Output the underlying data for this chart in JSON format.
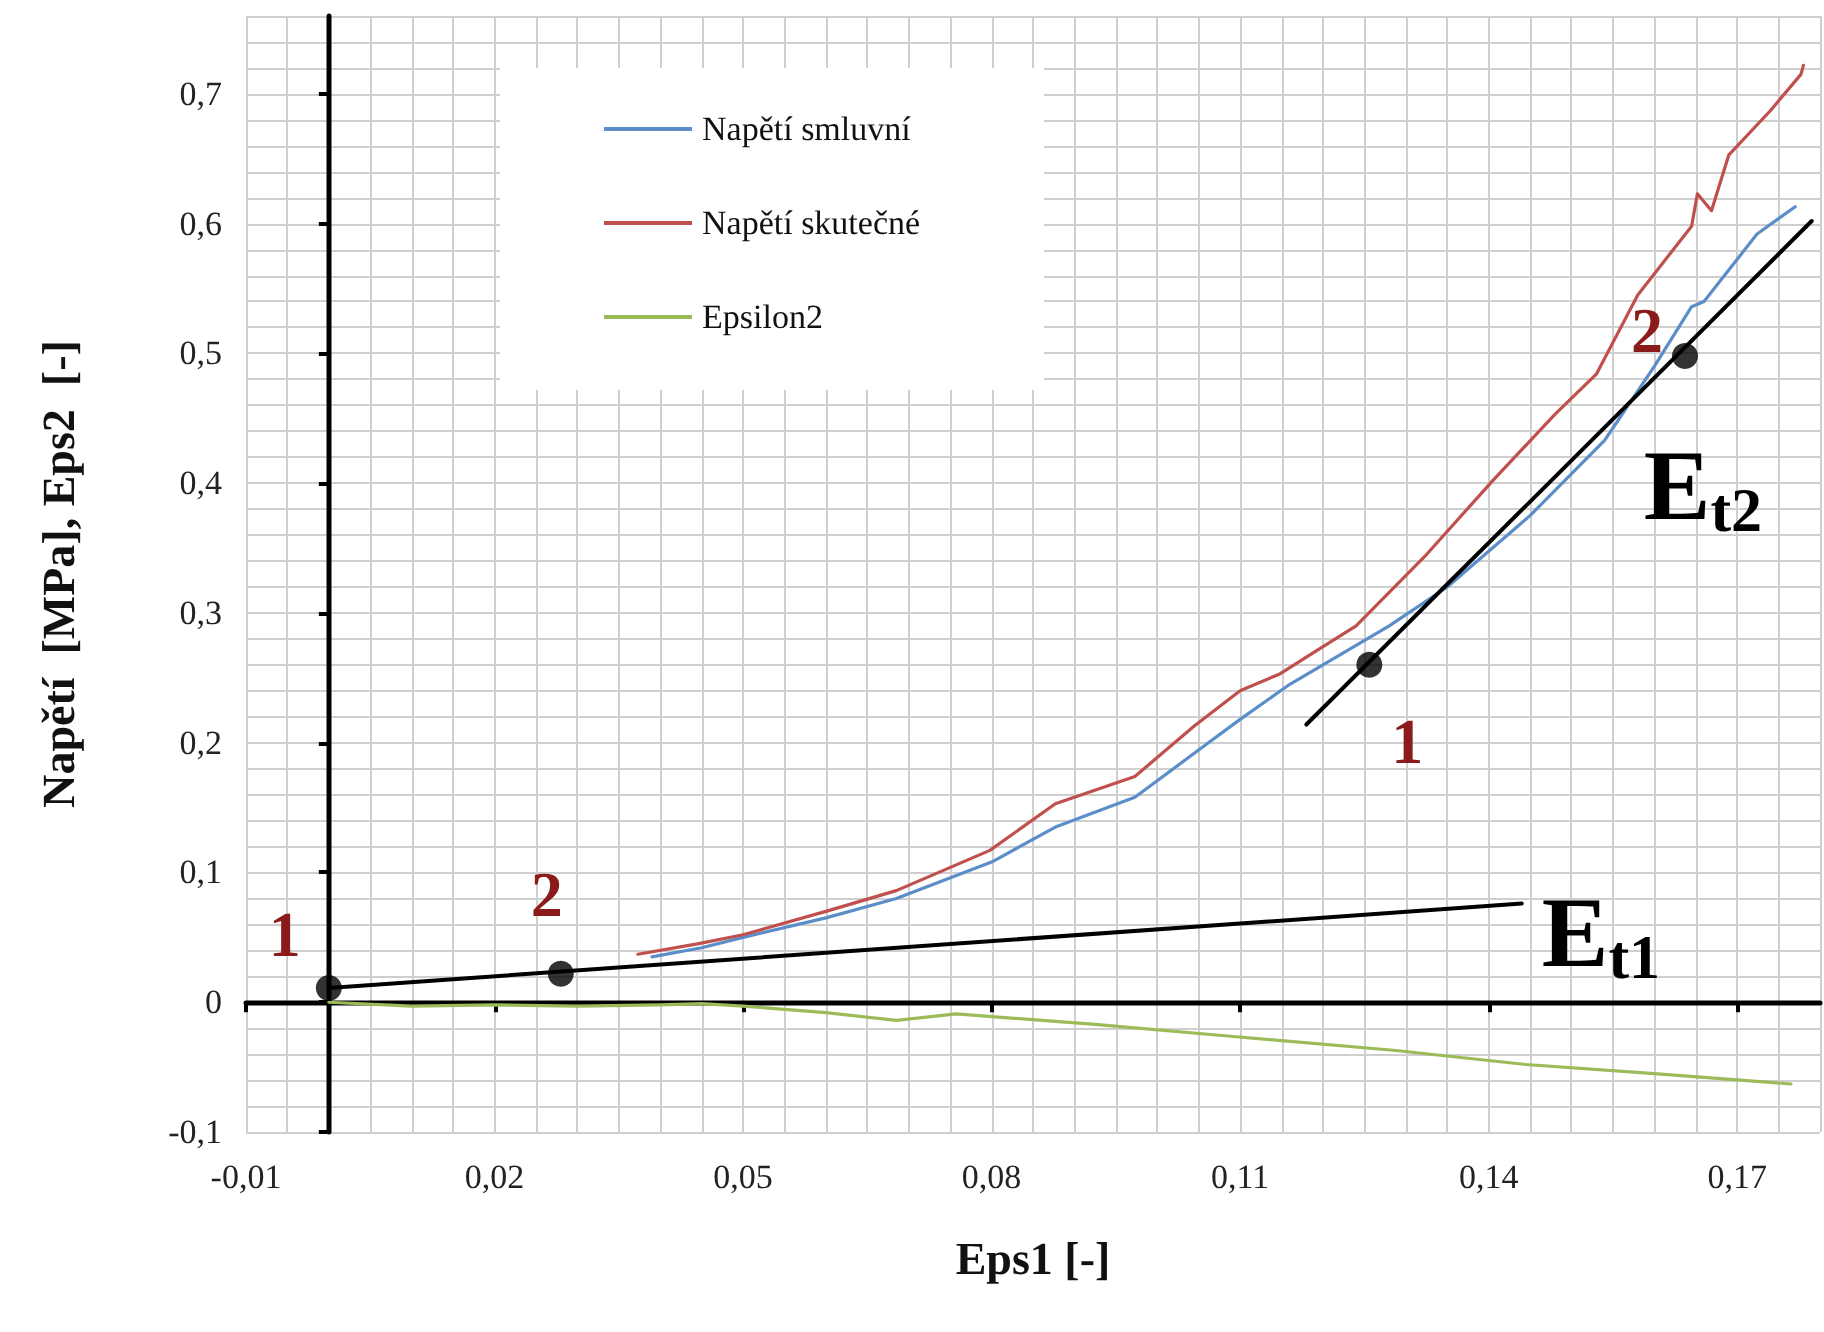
{
  "chart_data": {
    "type": "line",
    "xlabel": "Eps1 [-]",
    "ylabel": "Napětí  [MPa], Eps2  [-]",
    "xlim": [
      -0.01,
      0.18
    ],
    "ylim": [
      -0.1,
      0.76
    ],
    "xticks": [
      {
        "value": -0.01,
        "label": "-0,01"
      },
      {
        "value": 0.02,
        "label": "0,02"
      },
      {
        "value": 0.05,
        "label": "0,05"
      },
      {
        "value": 0.08,
        "label": "0,08"
      },
      {
        "value": 0.11,
        "label": "0,11"
      },
      {
        "value": 0.14,
        "label": "0,14"
      },
      {
        "value": 0.17,
        "label": "0,17"
      }
    ],
    "yticks": [
      {
        "value": -0.1,
        "label": "-0,1"
      },
      0,
      {
        "value": 0.1,
        "label": "0,1"
      },
      {
        "value": 0.2,
        "label": "0,2"
      },
      {
        "value": 0.3,
        "label": "0,3"
      },
      {
        "value": 0.4,
        "label": "0,4"
      },
      {
        "value": 0.5,
        "label": "0,5"
      },
      {
        "value": 0.6,
        "label": "0,6"
      },
      {
        "value": 0.7,
        "label": "0,7"
      }
    ],
    "grid": true,
    "legend": "top left",
    "marker": "none",
    "line_style": "solid",
    "series": [
      {
        "name": "Napětí smluvní",
        "color": "#5b8ec9",
        "x": [
          0.039,
          0.045,
          0.05,
          0.06,
          0.0685,
          0.08,
          0.0877,
          0.0973,
          0.1045,
          0.11,
          0.116,
          0.12,
          0.128,
          0.135,
          0.145,
          0.154,
          0.16,
          0.1645,
          0.166,
          0.1724,
          0.177
        ],
        "values": [
          0.035,
          0.042,
          0.05,
          0.065,
          0.08,
          0.108,
          0.135,
          0.158,
          0.192,
          0.218,
          0.245,
          0.26,
          0.29,
          0.32,
          0.375,
          0.433,
          0.49,
          0.536,
          0.54,
          0.592,
          0.613
        ]
      },
      {
        "name": "Napětí skutečné",
        "color": "#c0504d",
        "x": [
          0.0373,
          0.0445,
          0.05,
          0.06,
          0.0685,
          0.0798,
          0.0877,
          0.0973,
          0.1045,
          0.11,
          0.1148,
          0.119,
          0.124,
          0.1325,
          0.1405,
          0.148,
          0.153,
          0.158,
          0.1645,
          0.1652,
          0.1669,
          0.169,
          0.174,
          0.1777,
          0.178
        ],
        "values": [
          0.037,
          0.045,
          0.052,
          0.07,
          0.086,
          0.117,
          0.153,
          0.174,
          0.213,
          0.24,
          0.253,
          0.27,
          0.29,
          0.345,
          0.402,
          0.453,
          0.484,
          0.545,
          0.598,
          0.623,
          0.61,
          0.653,
          0.687,
          0.715,
          0.722
        ]
      },
      {
        "name": "Epsilon2",
        "color": "#9bbb59",
        "x": [
          0,
          0.01,
          0.02,
          0.03,
          0.04,
          0.045,
          0.05,
          0.06,
          0.0685,
          0.0757,
          0.0925,
          0.1085,
          0.1285,
          0.1445,
          0.16,
          0.1765
        ],
        "values": [
          0,
          -0.003,
          -0.002,
          -0.003,
          -0.002,
          -0.001,
          -0.003,
          -0.008,
          -0.014,
          -0.009,
          -0.017,
          -0.026,
          -0.037,
          -0.048,
          -0.055,
          -0.063
        ]
      },
      {
        "color": "#000000",
        "x": [
          0,
          0.144
        ],
        "values": [
          0.011,
          0.076
        ]
      },
      {
        "color": "#000000",
        "x": [
          0.118,
          0.179
        ],
        "values": [
          0.214,
          0.602
        ]
      },
      {
        "type": "scatter",
        "marker": "circle",
        "color": "#000000",
        "x": [
          0,
          0.028,
          0.1256,
          0.1637
        ],
        "values": [
          0.011,
          0.022,
          0.26,
          0.498
        ]
      }
    ],
    "annotations": [
      {
        "text": "1",
        "x": 0,
        "y": 0.011
      },
      {
        "text": "2",
        "x": 0.028,
        "y": 0.022
      },
      {
        "text": "1",
        "x": 0.1256,
        "y": 0.26
      },
      {
        "text": "2",
        "x": 0.1637,
        "y": 0.498
      },
      {
        "text": "E$_{t1}$",
        "x": 0.144,
        "y": 0.076
      },
      {
        "text": "E$_{t2}$",
        "x": 0.179,
        "y": 0.602
      }
    ]
  }
}
